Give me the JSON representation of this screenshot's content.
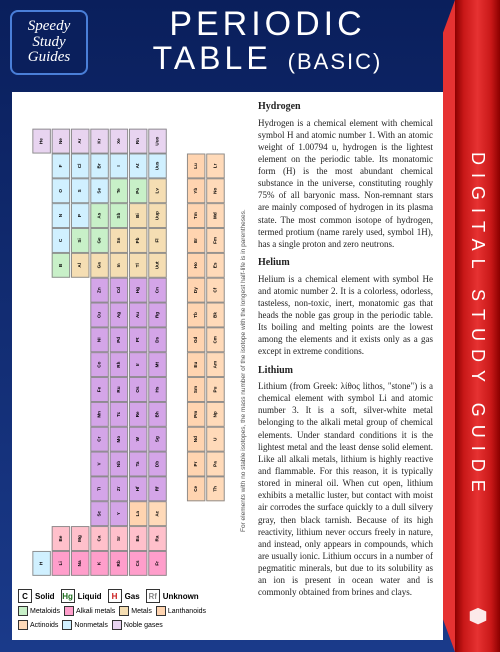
{
  "badge": {
    "line1": "Speedy",
    "line2": "Study",
    "line3": "Guides"
  },
  "title": {
    "line1": "PERIODIC",
    "line2": "TABLE",
    "basic": "(BASIC)"
  },
  "spine": {
    "text": "DIGITAL STUDY GUIDE"
  },
  "footnote": "For elements with no stable isotopes, the mass number of the isotope with the longest half-life is in parentheses.",
  "legend": {
    "states": [
      {
        "symbol": "C",
        "label": "Solid",
        "color": "#000000"
      },
      {
        "symbol": "Hg",
        "label": "Liquid",
        "color": "#1a6b1a"
      },
      {
        "symbol": "H",
        "label": "Gas",
        "color": "#c91818"
      },
      {
        "symbol": "Rf",
        "label": "Unknown",
        "color": "#888888"
      }
    ],
    "categories": [
      {
        "label": "Metaloids",
        "color": "#c8f0c8"
      },
      {
        "label": "Alkali metals",
        "color": "#ff9ecb"
      },
      {
        "label": "Metals",
        "color": "#f5deb3"
      },
      {
        "label": "Lanthanoids",
        "color": "#ffd4b0"
      },
      {
        "label": "Actinoids",
        "color": "#ffdab9"
      },
      {
        "label": "Nonmetals",
        "color": "#d0f0ff"
      },
      {
        "label": "Noble gases",
        "color": "#e8d4f0"
      }
    ]
  },
  "sections": [
    {
      "title": "Hydrogen",
      "body": "Hydrogen is a chemical element with chemical symbol H and atomic number 1. With an atomic weight of 1.00794 u, hydrogen is the lightest element on the periodic table. Its monatomic form (H) is the most abundant chemical substance in the universe, constituting roughly 75% of all baryonic mass. Non-remnant stars are mainly composed of hydrogen in its plasma state. The most common isotope of hydrogen, termed protium (name rarely used, symbol 1H), has a single proton and zero neutrons."
    },
    {
      "title": "Helium",
      "body": "Helium is a chemical element with symbol He and atomic number 2. It is a colorless, odorless, tasteless, non-toxic, inert, monatomic gas that heads the noble gas group in the periodic table. Its boiling and melting points are the lowest among the elements and it exists only as a gas except in extreme conditions."
    },
    {
      "title": "Lithium",
      "body": "Lithium (from Greek: λίθος lithos, \"stone\") is a chemical element with symbol Li and atomic number 3. It is a soft, silver-white metal belonging to the alkali metal group of chemical elements. Under standard conditions it is the lightest metal and the least dense solid element. Like all alkali metals, lithium is highly reactive and flammable. For this reason, it is typically stored in mineral oil. When cut open, lithium exhibits a metallic luster, but contact with moist air corrodes the surface quickly to a dull silvery gray, then black tarnish. Because of its high reactivity, lithium never occurs freely in nature, and instead, only appears in compounds, which are usually ionic. Lithium occurs in a number of pegmatitic minerals, but due to its solubility as an ion is present in ocean water and is commonly obtained from brines and clays."
    }
  ],
  "pt": {
    "rows": [
      [
        {
          "s": "H",
          "c": "c-nm"
        },
        null,
        null,
        null,
        null,
        null,
        null,
        null,
        null,
        null,
        null,
        null,
        null,
        null,
        null,
        null,
        null,
        {
          "s": "He",
          "c": "c-ng"
        }
      ],
      [
        {
          "s": "Li",
          "c": "c-alk"
        },
        {
          "s": "Be",
          "c": "c-alke"
        },
        null,
        null,
        null,
        null,
        null,
        null,
        null,
        null,
        null,
        null,
        {
          "s": "B",
          "c": "c-met"
        },
        {
          "s": "C",
          "c": "c-nm"
        },
        {
          "s": "N",
          "c": "c-nm"
        },
        {
          "s": "O",
          "c": "c-nm"
        },
        {
          "s": "F",
          "c": "c-nm"
        },
        {
          "s": "Ne",
          "c": "c-ng"
        }
      ],
      [
        {
          "s": "Na",
          "c": "c-alk"
        },
        {
          "s": "Mg",
          "c": "c-alke"
        },
        null,
        null,
        null,
        null,
        null,
        null,
        null,
        null,
        null,
        null,
        {
          "s": "Al",
          "c": "c-mtl"
        },
        {
          "s": "Si",
          "c": "c-met"
        },
        {
          "s": "P",
          "c": "c-nm"
        },
        {
          "s": "S",
          "c": "c-nm"
        },
        {
          "s": "Cl",
          "c": "c-nm"
        },
        {
          "s": "Ar",
          "c": "c-ng"
        }
      ],
      [
        {
          "s": "K",
          "c": "c-alk"
        },
        {
          "s": "Ca",
          "c": "c-alke"
        },
        {
          "s": "Sc",
          "c": "c-tm"
        },
        {
          "s": "Ti",
          "c": "c-tm"
        },
        {
          "s": "V",
          "c": "c-tm"
        },
        {
          "s": "Cr",
          "c": "c-tm"
        },
        {
          "s": "Mn",
          "c": "c-tm"
        },
        {
          "s": "Fe",
          "c": "c-tm"
        },
        {
          "s": "Co",
          "c": "c-tm"
        },
        {
          "s": "Ni",
          "c": "c-tm"
        },
        {
          "s": "Cu",
          "c": "c-tm"
        },
        {
          "s": "Zn",
          "c": "c-tm"
        },
        {
          "s": "Ga",
          "c": "c-mtl"
        },
        {
          "s": "Ge",
          "c": "c-met"
        },
        {
          "s": "As",
          "c": "c-met"
        },
        {
          "s": "Se",
          "c": "c-nm"
        },
        {
          "s": "Br",
          "c": "c-nm"
        },
        {
          "s": "Kr",
          "c": "c-ng"
        }
      ],
      [
        {
          "s": "Rb",
          "c": "c-alk"
        },
        {
          "s": "Sr",
          "c": "c-alke"
        },
        {
          "s": "Y",
          "c": "c-tm"
        },
        {
          "s": "Zr",
          "c": "c-tm"
        },
        {
          "s": "Nb",
          "c": "c-tm"
        },
        {
          "s": "Mo",
          "c": "c-tm"
        },
        {
          "s": "Tc",
          "c": "c-tm"
        },
        {
          "s": "Ru",
          "c": "c-tm"
        },
        {
          "s": "Rh",
          "c": "c-tm"
        },
        {
          "s": "Pd",
          "c": "c-tm"
        },
        {
          "s": "Ag",
          "c": "c-tm"
        },
        {
          "s": "Cd",
          "c": "c-tm"
        },
        {
          "s": "In",
          "c": "c-mtl"
        },
        {
          "s": "Sn",
          "c": "c-mtl"
        },
        {
          "s": "Sb",
          "c": "c-met"
        },
        {
          "s": "Te",
          "c": "c-met"
        },
        {
          "s": "I",
          "c": "c-nm"
        },
        {
          "s": "Xe",
          "c": "c-ng"
        }
      ],
      [
        {
          "s": "Cs",
          "c": "c-alk"
        },
        {
          "s": "Ba",
          "c": "c-alke"
        },
        {
          "s": "La",
          "c": "c-lan"
        },
        {
          "s": "Hf",
          "c": "c-tm"
        },
        {
          "s": "Ta",
          "c": "c-tm"
        },
        {
          "s": "W",
          "c": "c-tm"
        },
        {
          "s": "Re",
          "c": "c-tm"
        },
        {
          "s": "Os",
          "c": "c-tm"
        },
        {
          "s": "Ir",
          "c": "c-tm"
        },
        {
          "s": "Pt",
          "c": "c-tm"
        },
        {
          "s": "Au",
          "c": "c-tm"
        },
        {
          "s": "Hg",
          "c": "c-tm"
        },
        {
          "s": "Tl",
          "c": "c-mtl"
        },
        {
          "s": "Pb",
          "c": "c-mtl"
        },
        {
          "s": "Bi",
          "c": "c-mtl"
        },
        {
          "s": "Po",
          "c": "c-met"
        },
        {
          "s": "At",
          "c": "c-nm"
        },
        {
          "s": "Rn",
          "c": "c-ng"
        }
      ],
      [
        {
          "s": "Fr",
          "c": "c-alk"
        },
        {
          "s": "Ra",
          "c": "c-alke"
        },
        {
          "s": "Ac",
          "c": "c-act"
        },
        {
          "s": "Rf",
          "c": "c-tm"
        },
        {
          "s": "Db",
          "c": "c-tm"
        },
        {
          "s": "Sg",
          "c": "c-tm"
        },
        {
          "s": "Bh",
          "c": "c-tm"
        },
        {
          "s": "Hs",
          "c": "c-tm"
        },
        {
          "s": "Mt",
          "c": "c-tm"
        },
        {
          "s": "Ds",
          "c": "c-tm"
        },
        {
          "s": "Rg",
          "c": "c-tm"
        },
        {
          "s": "Cn",
          "c": "c-tm"
        },
        {
          "s": "Uut",
          "c": "c-mtl"
        },
        {
          "s": "Fl",
          "c": "c-mtl"
        },
        {
          "s": "Uup",
          "c": "c-mtl"
        },
        {
          "s": "Lv",
          "c": "c-mtl"
        },
        {
          "s": "Uus",
          "c": "c-nm"
        },
        {
          "s": "Uuo",
          "c": "c-ng"
        }
      ],
      [
        null,
        null,
        null,
        null,
        null,
        null,
        null,
        null,
        null,
        null,
        null,
        null,
        null,
        null,
        null,
        null,
        null,
        null
      ],
      [
        null,
        null,
        null,
        {
          "s": "Ce",
          "c": "c-lan"
        },
        {
          "s": "Pr",
          "c": "c-lan"
        },
        {
          "s": "Nd",
          "c": "c-lan"
        },
        {
          "s": "Pm",
          "c": "c-lan"
        },
        {
          "s": "Sm",
          "c": "c-lan"
        },
        {
          "s": "Eu",
          "c": "c-lan"
        },
        {
          "s": "Gd",
          "c": "c-lan"
        },
        {
          "s": "Tb",
          "c": "c-lan"
        },
        {
          "s": "Dy",
          "c": "c-lan"
        },
        {
          "s": "Ho",
          "c": "c-lan"
        },
        {
          "s": "Er",
          "c": "c-lan"
        },
        {
          "s": "Tm",
          "c": "c-lan"
        },
        {
          "s": "Yb",
          "c": "c-lan"
        },
        {
          "s": "Lu",
          "c": "c-lan"
        },
        null
      ],
      [
        null,
        null,
        null,
        {
          "s": "Th",
          "c": "c-act"
        },
        {
          "s": "Pa",
          "c": "c-act"
        },
        {
          "s": "U",
          "c": "c-act"
        },
        {
          "s": "Np",
          "c": "c-act"
        },
        {
          "s": "Pu",
          "c": "c-act"
        },
        {
          "s": "Am",
          "c": "c-act"
        },
        {
          "s": "Cm",
          "c": "c-act"
        },
        {
          "s": "Bk",
          "c": "c-act"
        },
        {
          "s": "Cf",
          "c": "c-act"
        },
        {
          "s": "Es",
          "c": "c-act"
        },
        {
          "s": "Fm",
          "c": "c-act"
        },
        {
          "s": "Md",
          "c": "c-act"
        },
        {
          "s": "No",
          "c": "c-act"
        },
        {
          "s": "Lr",
          "c": "c-act"
        },
        null
      ]
    ]
  }
}
